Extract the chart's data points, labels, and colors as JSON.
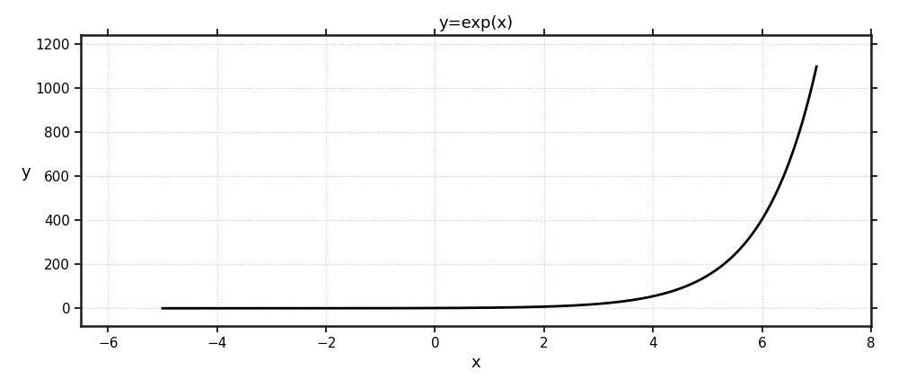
{
  "title": "y=exp(x)",
  "xlabel": "x",
  "ylabel": "y",
  "xlim": [
    -6.5,
    7.8
  ],
  "ylim": [
    -80,
    1240
  ],
  "x_ticks": [
    -6,
    -4,
    -2,
    0,
    2,
    4,
    6,
    8
  ],
  "y_ticks": [
    0,
    200,
    400,
    600,
    800,
    1000,
    1200
  ],
  "x_start": -5,
  "x_end": 7,
  "line_color": "#000000",
  "line_width": 2.0,
  "background_color": "#ffffff",
  "grid_color_h": "#e8b8cc",
  "grid_color_v": "#b8d8c0",
  "grid_linestyle": ":",
  "grid_linewidth": 0.8,
  "title_fontsize": 13,
  "label_fontsize": 13,
  "tick_fontsize": 11,
  "spine_linewidth": 1.8
}
